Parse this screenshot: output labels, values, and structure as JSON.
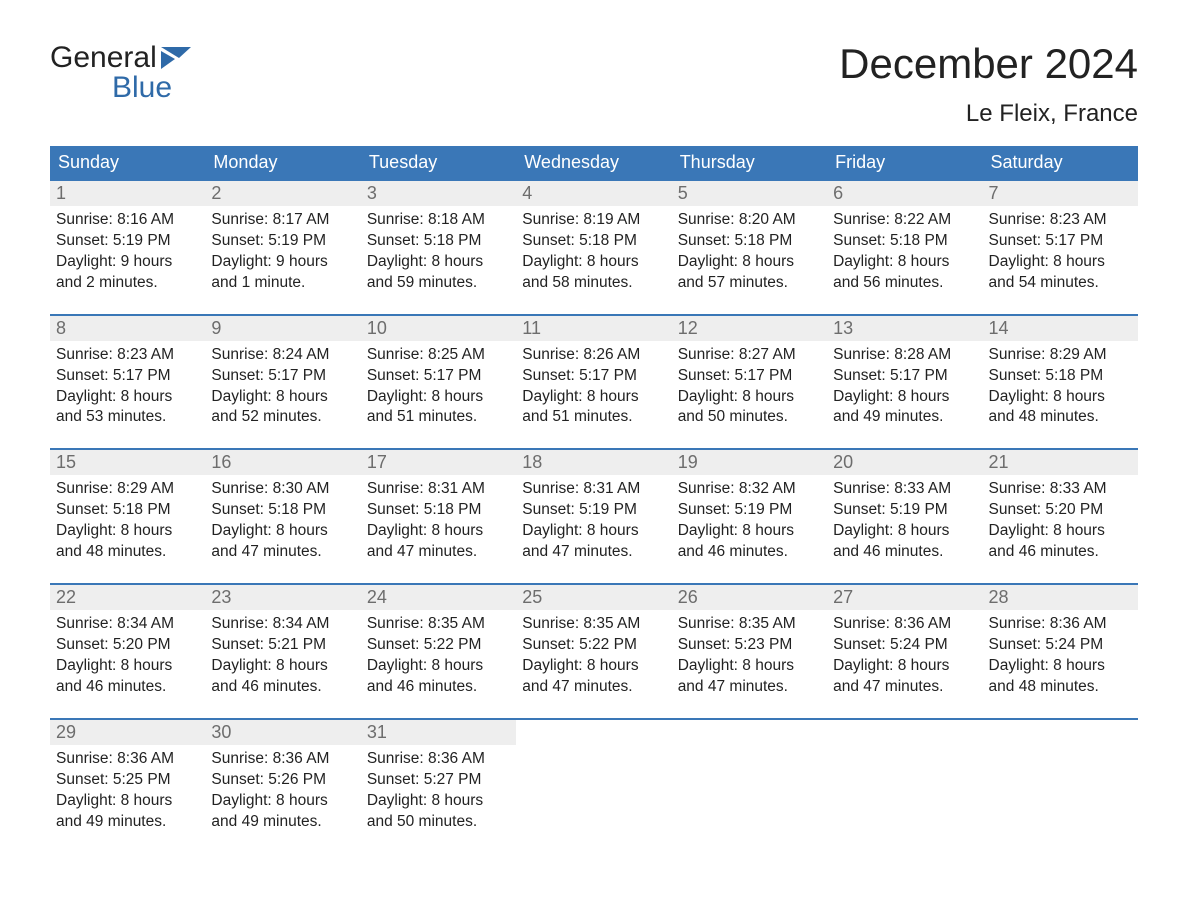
{
  "logo": {
    "word1": "General",
    "word2": "Blue",
    "icon_color": "#2f6aa8"
  },
  "title": "December 2024",
  "location": "Le Fleix, France",
  "colors": {
    "header_bg": "#3a77b7",
    "header_text": "#ffffff",
    "row_divider": "#3a77b7",
    "daynum_bg": "#eeeeee",
    "daynum_text": "#6d6d6d",
    "body_text": "#222222",
    "page_bg": "#ffffff",
    "logo_blue": "#2f6aa8"
  },
  "weekdays": [
    "Sunday",
    "Monday",
    "Tuesday",
    "Wednesday",
    "Thursday",
    "Friday",
    "Saturday"
  ],
  "weeks": [
    [
      {
        "n": "1",
        "sunrise": "8:16 AM",
        "sunset": "5:19 PM",
        "daylight": "9 hours and 2 minutes."
      },
      {
        "n": "2",
        "sunrise": "8:17 AM",
        "sunset": "5:19 PM",
        "daylight": "9 hours and 1 minute."
      },
      {
        "n": "3",
        "sunrise": "8:18 AM",
        "sunset": "5:18 PM",
        "daylight": "8 hours and 59 minutes."
      },
      {
        "n": "4",
        "sunrise": "8:19 AM",
        "sunset": "5:18 PM",
        "daylight": "8 hours and 58 minutes."
      },
      {
        "n": "5",
        "sunrise": "8:20 AM",
        "sunset": "5:18 PM",
        "daylight": "8 hours and 57 minutes."
      },
      {
        "n": "6",
        "sunrise": "8:22 AM",
        "sunset": "5:18 PM",
        "daylight": "8 hours and 56 minutes."
      },
      {
        "n": "7",
        "sunrise": "8:23 AM",
        "sunset": "5:17 PM",
        "daylight": "8 hours and 54 minutes."
      }
    ],
    [
      {
        "n": "8",
        "sunrise": "8:23 AM",
        "sunset": "5:17 PM",
        "daylight": "8 hours and 53 minutes."
      },
      {
        "n": "9",
        "sunrise": "8:24 AM",
        "sunset": "5:17 PM",
        "daylight": "8 hours and 52 minutes."
      },
      {
        "n": "10",
        "sunrise": "8:25 AM",
        "sunset": "5:17 PM",
        "daylight": "8 hours and 51 minutes."
      },
      {
        "n": "11",
        "sunrise": "8:26 AM",
        "sunset": "5:17 PM",
        "daylight": "8 hours and 51 minutes."
      },
      {
        "n": "12",
        "sunrise": "8:27 AM",
        "sunset": "5:17 PM",
        "daylight": "8 hours and 50 minutes."
      },
      {
        "n": "13",
        "sunrise": "8:28 AM",
        "sunset": "5:17 PM",
        "daylight": "8 hours and 49 minutes."
      },
      {
        "n": "14",
        "sunrise": "8:29 AM",
        "sunset": "5:18 PM",
        "daylight": "8 hours and 48 minutes."
      }
    ],
    [
      {
        "n": "15",
        "sunrise": "8:29 AM",
        "sunset": "5:18 PM",
        "daylight": "8 hours and 48 minutes."
      },
      {
        "n": "16",
        "sunrise": "8:30 AM",
        "sunset": "5:18 PM",
        "daylight": "8 hours and 47 minutes."
      },
      {
        "n": "17",
        "sunrise": "8:31 AM",
        "sunset": "5:18 PM",
        "daylight": "8 hours and 47 minutes."
      },
      {
        "n": "18",
        "sunrise": "8:31 AM",
        "sunset": "5:19 PM",
        "daylight": "8 hours and 47 minutes."
      },
      {
        "n": "19",
        "sunrise": "8:32 AM",
        "sunset": "5:19 PM",
        "daylight": "8 hours and 46 minutes."
      },
      {
        "n": "20",
        "sunrise": "8:33 AM",
        "sunset": "5:19 PM",
        "daylight": "8 hours and 46 minutes."
      },
      {
        "n": "21",
        "sunrise": "8:33 AM",
        "sunset": "5:20 PM",
        "daylight": "8 hours and 46 minutes."
      }
    ],
    [
      {
        "n": "22",
        "sunrise": "8:34 AM",
        "sunset": "5:20 PM",
        "daylight": "8 hours and 46 minutes."
      },
      {
        "n": "23",
        "sunrise": "8:34 AM",
        "sunset": "5:21 PM",
        "daylight": "8 hours and 46 minutes."
      },
      {
        "n": "24",
        "sunrise": "8:35 AM",
        "sunset": "5:22 PM",
        "daylight": "8 hours and 46 minutes."
      },
      {
        "n": "25",
        "sunrise": "8:35 AM",
        "sunset": "5:22 PM",
        "daylight": "8 hours and 47 minutes."
      },
      {
        "n": "26",
        "sunrise": "8:35 AM",
        "sunset": "5:23 PM",
        "daylight": "8 hours and 47 minutes."
      },
      {
        "n": "27",
        "sunrise": "8:36 AM",
        "sunset": "5:24 PM",
        "daylight": "8 hours and 47 minutes."
      },
      {
        "n": "28",
        "sunrise": "8:36 AM",
        "sunset": "5:24 PM",
        "daylight": "8 hours and 48 minutes."
      }
    ],
    [
      {
        "n": "29",
        "sunrise": "8:36 AM",
        "sunset": "5:25 PM",
        "daylight": "8 hours and 49 minutes."
      },
      {
        "n": "30",
        "sunrise": "8:36 AM",
        "sunset": "5:26 PM",
        "daylight": "8 hours and 49 minutes."
      },
      {
        "n": "31",
        "sunrise": "8:36 AM",
        "sunset": "5:27 PM",
        "daylight": "8 hours and 50 minutes."
      },
      null,
      null,
      null,
      null
    ]
  ],
  "labels": {
    "sunrise": "Sunrise: ",
    "sunset": "Sunset: ",
    "daylight": "Daylight: "
  }
}
